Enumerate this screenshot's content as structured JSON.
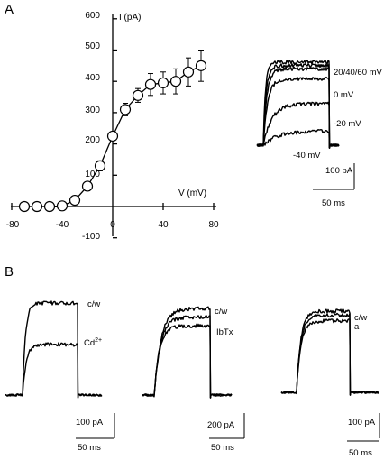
{
  "panels": {
    "a": "A",
    "b": "B"
  },
  "chart_data": [
    {
      "type": "scatter",
      "title": "",
      "xlabel": "V (mV)",
      "ylabel": "I (pA)",
      "xlim": [
        -80,
        80
      ],
      "ylim": [
        -100,
        600
      ],
      "x_ticks": [
        "-80",
        "-40",
        "0",
        "40",
        "80"
      ],
      "y_ticks": [
        "-100",
        "100",
        "200",
        "300",
        "400",
        "500",
        "600"
      ],
      "series": [
        {
          "x": [
            -70,
            -60,
            -50,
            -40,
            -30,
            -20,
            -10,
            0,
            10,
            20,
            30,
            40,
            50,
            60,
            70
          ],
          "y": [
            0,
            0,
            0,
            2,
            20,
            65,
            130,
            225,
            310,
            355,
            390,
            395,
            400,
            430,
            450
          ],
          "error": [
            12,
            10,
            10,
            10,
            14,
            14,
            16,
            14,
            20,
            22,
            35,
            35,
            40,
            45,
            50
          ]
        }
      ]
    },
    {
      "type": "line",
      "title": "",
      "series": [
        {
          "name": "20/40/60 mV",
          "plateau": 1.0
        },
        {
          "name": "0 mV",
          "plateau": 0.8
        },
        {
          "name": "-20 mV",
          "plateau": 0.5
        },
        {
          "name": "-40 mV",
          "plateau": 0.17
        }
      ],
      "scale_bar": {
        "current": "100 pA",
        "time": "50 ms"
      }
    },
    {
      "type": "line",
      "title": "",
      "series": [
        {
          "name": "c/w",
          "plateau": 1.0
        },
        {
          "name": "Cd2+",
          "plateau": 0.55
        }
      ],
      "scale_bar": {
        "current": "100 pA",
        "time": "50 ms"
      }
    },
    {
      "type": "line",
      "title": "",
      "series": [
        {
          "name": "c/w",
          "plateau": 1.0
        },
        {
          "name": "IbTx",
          "plateau": 0.8
        }
      ],
      "scale_bar": {
        "current": "200 pA",
        "time": "50 ms"
      }
    },
    {
      "type": "line",
      "title": "",
      "series": [
        {
          "name": "c/w",
          "plateau": 1.0
        },
        {
          "name": "a",
          "plateau": 0.88
        }
      ],
      "scale_bar": {
        "current": "100 pA",
        "time": "50 ms"
      }
    }
  ]
}
